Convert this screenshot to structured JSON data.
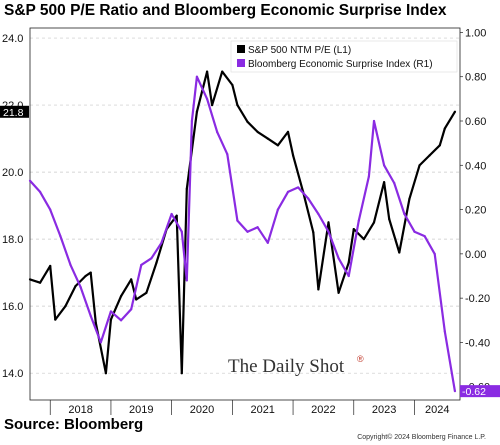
{
  "title": "S&P 500 P/E Ratio and Bloomberg Economic Surprise Index",
  "source": "Source: Bloomberg",
  "copyright": "Copyright© 2024 Bloomberg Finance L.P.",
  "watermark": "The Daily Shot",
  "watermark_mark": "®",
  "chart_data": {
    "type": "line",
    "x_ticks": [
      "2018",
      "2019",
      "2020",
      "2021",
      "2022",
      "2023",
      "2024"
    ],
    "xlim": [
      "2017-09",
      "2024-10"
    ],
    "y_left": {
      "ticks": [
        "14.0",
        "16.0",
        "18.0",
        "20.0",
        "22.0",
        "24.0"
      ],
      "ylim": [
        13.2,
        24.3
      ]
    },
    "y_right": {
      "ticks": [
        "-0.60",
        "-0.40",
        "-0.20",
        "0.00",
        "0.20",
        "0.40",
        "0.60",
        "0.80",
        "1.00"
      ],
      "ylim": [
        -0.66,
        1.02
      ]
    },
    "grid": "horizontal dashed at left-axis ticks",
    "last_value_labels": {
      "left": "21.8",
      "right": "-0.62"
    },
    "series": [
      {
        "name": "S&P 500 NTM P/E (L1)",
        "axis": "left",
        "color": "#000000",
        "x": [
          "2017-09",
          "2017-11",
          "2018-01",
          "2018-02",
          "2018-04",
          "2018-06",
          "2018-08",
          "2018-09",
          "2018-10",
          "2018-12",
          "2019-01",
          "2019-03",
          "2019-05",
          "2019-06",
          "2019-08",
          "2019-10",
          "2019-12",
          "2020-02",
          "2020-03",
          "2020-04",
          "2020-06",
          "2020-08",
          "2020-09",
          "2020-11",
          "2021-01",
          "2021-02",
          "2021-04",
          "2021-06",
          "2021-08",
          "2021-10",
          "2021-12",
          "2022-01",
          "2022-03",
          "2022-05",
          "2022-06",
          "2022-08",
          "2022-10",
          "2022-12",
          "2023-01",
          "2023-03",
          "2023-05",
          "2023-07",
          "2023-08",
          "2023-10",
          "2023-12",
          "2024-02",
          "2024-04",
          "2024-06",
          "2024-07",
          "2024-09"
        ],
        "values": [
          16.8,
          16.7,
          17.2,
          15.6,
          16.0,
          16.6,
          16.9,
          17.0,
          15.5,
          14.0,
          15.6,
          16.3,
          16.8,
          16.2,
          16.4,
          17.3,
          18.3,
          18.7,
          14.0,
          19.5,
          21.8,
          23.0,
          22.0,
          23.0,
          22.6,
          22.0,
          21.5,
          21.2,
          21.0,
          20.8,
          21.2,
          20.5,
          19.4,
          18.2,
          16.5,
          18.5,
          16.4,
          17.3,
          18.3,
          18.0,
          18.5,
          19.7,
          18.6,
          17.6,
          19.2,
          20.2,
          20.5,
          20.8,
          21.3,
          21.8
        ]
      },
      {
        "name": "Bloomberg Economic Surprise Index (R1)",
        "axis": "right",
        "color": "#8a2be2",
        "x": [
          "2017-09",
          "2017-11",
          "2018-01",
          "2018-03",
          "2018-05",
          "2018-07",
          "2018-09",
          "2018-11",
          "2019-01",
          "2019-03",
          "2019-05",
          "2019-07",
          "2019-09",
          "2019-11",
          "2020-01",
          "2020-03",
          "2020-04",
          "2020-05",
          "2020-06",
          "2020-08",
          "2020-10",
          "2020-12",
          "2021-02",
          "2021-04",
          "2021-06",
          "2021-08",
          "2021-10",
          "2021-12",
          "2022-02",
          "2022-04",
          "2022-06",
          "2022-08",
          "2022-10",
          "2022-12",
          "2023-02",
          "2023-04",
          "2023-05",
          "2023-07",
          "2023-09",
          "2023-11",
          "2024-01",
          "2024-03",
          "2024-05",
          "2024-07",
          "2024-09"
        ],
        "values": [
          0.33,
          0.28,
          0.2,
          0.08,
          -0.05,
          -0.15,
          -0.28,
          -0.4,
          -0.26,
          -0.3,
          -0.25,
          -0.05,
          -0.02,
          0.05,
          0.18,
          0.1,
          -0.12,
          0.6,
          0.8,
          0.7,
          0.55,
          0.45,
          0.15,
          0.1,
          0.12,
          0.05,
          0.2,
          0.28,
          0.3,
          0.25,
          0.18,
          0.1,
          -0.02,
          -0.1,
          0.15,
          0.35,
          0.6,
          0.4,
          0.32,
          0.18,
          0.1,
          0.08,
          0.0,
          -0.35,
          -0.62
        ]
      }
    ]
  }
}
